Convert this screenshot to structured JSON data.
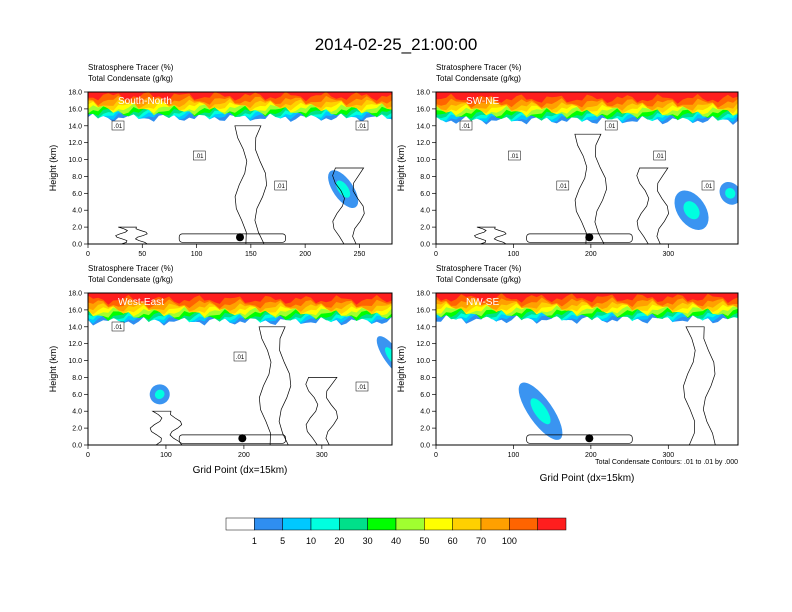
{
  "title": "2014-02-25_21:00:00",
  "footnote": "Total Condensate Contours: .01 to .01 by .000",
  "colors": {
    "contour": "#000000",
    "frame": "#000000",
    "background": "#ffffff",
    "marker": "#000000",
    "panel_label_text": "#ffffff"
  },
  "colorbar": {
    "labels": [
      "1",
      "5",
      "10",
      "20",
      "30",
      "40",
      "50",
      "60",
      "70",
      "100"
    ],
    "colors": [
      "#ffffff",
      "#2f8ef0",
      "#00c8ff",
      "#00ffe0",
      "#00e08a",
      "#00ff00",
      "#a0ff30",
      "#ffff00",
      "#ffd000",
      "#ffa000",
      "#ff6400",
      "#ff1e1e"
    ]
  },
  "chart_data": [
    {
      "type": "contour",
      "label": "South-North",
      "left_title_1": "Stratosphere Tracer   (%)",
      "left_title_2": "Total Condensate   (g/kg)",
      "ylabel": "Height (km)",
      "xlabel": "",
      "xlim": [
        0,
        280
      ],
      "ylim": [
        0,
        18
      ],
      "xticks": [
        "0",
        "50",
        "100",
        "150",
        "200",
        "250"
      ],
      "yticks": [
        "0.0",
        "2.0",
        "4.0",
        "6.0",
        "8.0",
        "10.0",
        "12.0",
        "14.0",
        "16.0",
        "18.0"
      ],
      "contour_labels": [
        ".01",
        ".01",
        ".01",
        ".01"
      ],
      "tracer_base_km": 15.3,
      "marker_x": 140
    },
    {
      "type": "contour",
      "label": "SW-NE",
      "left_title_1": "Stratosphere Tracer   (%)",
      "left_title_2": "Total Condensate   (g/kg)",
      "ylabel": "Height (km)",
      "xlabel": "",
      "xlim": [
        0,
        390
      ],
      "ylim": [
        0,
        18
      ],
      "xticks": [
        "0",
        "100",
        "200",
        "300"
      ],
      "yticks": [
        "0.0",
        "2.0",
        "4.0",
        "6.0",
        "8.0",
        "10.0",
        "12.0",
        "14.0",
        "16.0",
        "18.0"
      ],
      "contour_labels": [
        ".01",
        ".01",
        ".01",
        ".01",
        ".01",
        ".01"
      ],
      "tracer_base_km": 15.0,
      "marker_x": 198
    },
    {
      "type": "contour",
      "label": "West-East",
      "left_title_1": "Stratosphere Tracer   (%)",
      "left_title_2": "Total Condensate   (g/kg)",
      "ylabel": "Height (km)",
      "xlabel": "Grid Point (dx=15km)",
      "xlim": [
        0,
        390
      ],
      "ylim": [
        0,
        18
      ],
      "xticks": [
        "0",
        "100",
        "200",
        "300"
      ],
      "yticks": [
        "0.0",
        "2.0",
        "4.0",
        "6.0",
        "8.0",
        "10.0",
        "12.0",
        "14.0",
        "16.0",
        "18.0"
      ],
      "contour_labels": [
        ".01",
        ".01",
        ".01"
      ],
      "tracer_base_km": 15.0,
      "marker_x": 198
    },
    {
      "type": "contour",
      "label": "NW-SE",
      "left_title_1": "Stratosphere Tracer   (%)",
      "left_title_2": "Total Condensate   (g/kg)",
      "ylabel": "Height (km)",
      "xlabel": "Grid Point (dx=15km)",
      "xlim": [
        0,
        390
      ],
      "ylim": [
        0,
        18
      ],
      "xticks": [
        "0",
        "100",
        "200",
        "300"
      ],
      "yticks": [
        "0.0",
        "2.0",
        "4.0",
        "6.0",
        "8.0",
        "10.0",
        "12.0",
        "14.0",
        "16.0",
        "18.0"
      ],
      "contour_labels": [],
      "tracer_base_km": 15.2,
      "marker_x": 198
    }
  ]
}
